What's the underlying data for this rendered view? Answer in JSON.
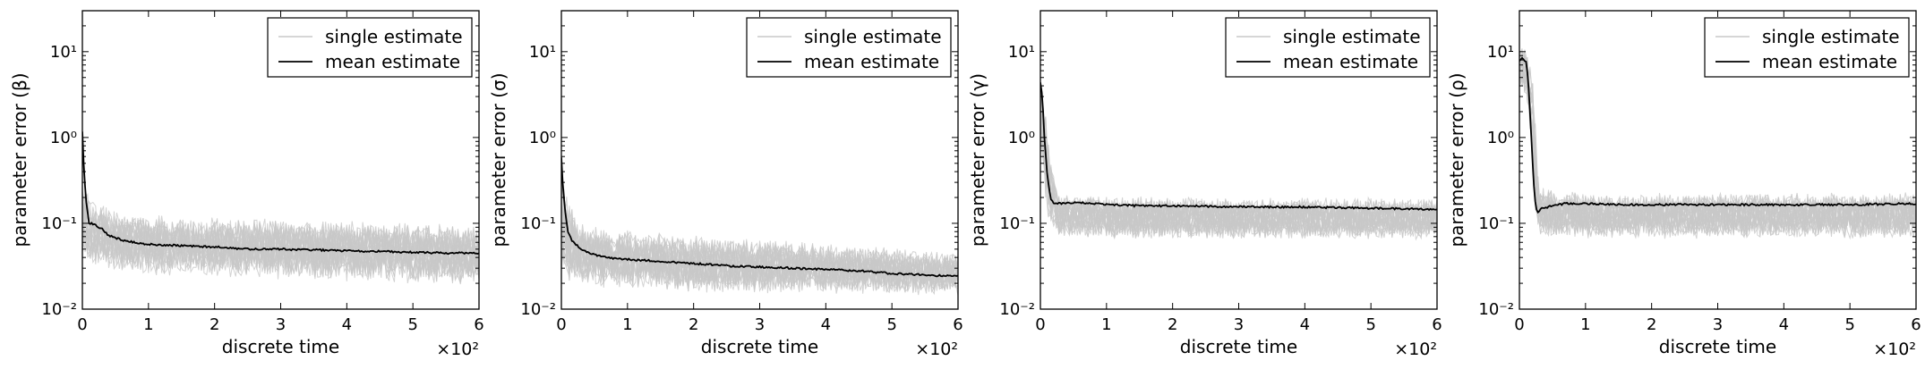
{
  "chart_data": [
    {
      "type": "line",
      "xlabel": "discrete time",
      "ylabel": "parameter error (β)",
      "x_multiplier": "×10²",
      "xlim": [
        0,
        6
      ],
      "ylim": [
        0.01,
        30
      ],
      "yscale": "log",
      "xticks": [
        "0",
        "1",
        "2",
        "3",
        "4",
        "5",
        "6"
      ],
      "yticks": [
        "10⁻²",
        "10⁻¹",
        "10⁰",
        "10¹"
      ],
      "legend": {
        "position": "top-right",
        "entries": [
          "single estimate",
          "mean estimate"
        ]
      },
      "band": {
        "name": "single estimate",
        "color": "#c8c8c8",
        "x": [
          0,
          0.1,
          0.3,
          0.6,
          1,
          2,
          3,
          4,
          5,
          6
        ],
        "lower": [
          0.02,
          0.02,
          0.02,
          0.018,
          0.017,
          0.016,
          0.015,
          0.014,
          0.013,
          0.013
        ],
        "upper": [
          0.6,
          0.4,
          0.25,
          0.2,
          0.19,
          0.17,
          0.17,
          0.16,
          0.15,
          0.14
        ]
      },
      "series": [
        {
          "name": "mean estimate",
          "color": "#000000",
          "x": [
            0,
            0.02,
            0.05,
            0.1,
            0.15,
            0.2,
            0.3,
            0.4,
            0.5,
            0.6,
            0.8,
            1,
            1.5,
            2,
            2.5,
            3,
            3.5,
            4,
            4.5,
            5,
            5.5,
            6
          ],
          "values": [
            1.2,
            0.5,
            0.2,
            0.1,
            0.1,
            0.095,
            0.085,
            0.072,
            0.068,
            0.064,
            0.06,
            0.057,
            0.055,
            0.053,
            0.05,
            0.05,
            0.049,
            0.048,
            0.047,
            0.046,
            0.045,
            0.045
          ]
        }
      ]
    },
    {
      "type": "line",
      "xlabel": "discrete time",
      "ylabel": "parameter error (σ)",
      "x_multiplier": "×10²",
      "xlim": [
        0,
        6
      ],
      "ylim": [
        0.01,
        30
      ],
      "yscale": "log",
      "xticks": [
        "0",
        "1",
        "2",
        "3",
        "4",
        "5",
        "6"
      ],
      "yticks": [
        "10⁻²",
        "10⁻¹",
        "10⁰",
        "10¹"
      ],
      "legend": {
        "position": "top-right",
        "entries": [
          "single estimate",
          "mean estimate"
        ]
      },
      "band": {
        "name": "single estimate",
        "color": "#c8c8c8",
        "x": [
          0,
          0.1,
          0.3,
          0.6,
          1,
          2,
          3,
          4,
          5,
          6
        ],
        "lower": [
          0.014,
          0.013,
          0.013,
          0.012,
          0.012,
          0.011,
          0.011,
          0.011,
          0.011,
          0.011
        ],
        "upper": [
          0.7,
          0.3,
          0.15,
          0.13,
          0.12,
          0.1,
          0.09,
          0.08,
          0.07,
          0.06
        ]
      },
      "series": [
        {
          "name": "mean estimate",
          "color": "#000000",
          "x": [
            0,
            0.02,
            0.05,
            0.1,
            0.15,
            0.2,
            0.3,
            0.4,
            0.5,
            0.6,
            0.8,
            1,
            1.5,
            2,
            2.5,
            3,
            3.5,
            4,
            4.5,
            5,
            5.5,
            6
          ],
          "values": [
            0.6,
            0.3,
            0.15,
            0.08,
            0.065,
            0.058,
            0.05,
            0.046,
            0.043,
            0.041,
            0.039,
            0.038,
            0.036,
            0.034,
            0.032,
            0.031,
            0.03,
            0.029,
            0.028,
            0.026,
            0.025,
            0.024
          ]
        }
      ]
    },
    {
      "type": "line",
      "xlabel": "discrete time",
      "ylabel": "parameter error (γ)",
      "x_multiplier": "×10²",
      "xlim": [
        0,
        6
      ],
      "ylim": [
        0.01,
        30
      ],
      "yscale": "log",
      "xticks": [
        "0",
        "1",
        "2",
        "3",
        "4",
        "5",
        "6"
      ],
      "yticks": [
        "10⁻²",
        "10⁻¹",
        "10⁰",
        "10¹"
      ],
      "legend": {
        "position": "top-right",
        "entries": [
          "single estimate",
          "mean estimate"
        ]
      },
      "band": {
        "name": "single estimate",
        "color": "#c8c8c8",
        "x": [
          0,
          0.05,
          0.1,
          0.15,
          0.2,
          0.3,
          0.5,
          1,
          2,
          3,
          4,
          5,
          6
        ],
        "lower": [
          0.5,
          0.2,
          0.06,
          0.05,
          0.05,
          0.05,
          0.05,
          0.05,
          0.05,
          0.05,
          0.05,
          0.05,
          0.05
        ],
        "upper": [
          8,
          6,
          3,
          1.2,
          0.5,
          0.3,
          0.28,
          0.27,
          0.27,
          0.26,
          0.26,
          0.26,
          0.26
        ]
      },
      "series": [
        {
          "name": "mean estimate",
          "color": "#000000",
          "x": [
            0,
            0.03,
            0.06,
            0.1,
            0.15,
            0.2,
            0.3,
            0.5,
            0.7,
            1,
            1.5,
            2,
            2.5,
            3,
            3.5,
            4,
            4.5,
            5,
            5.5,
            6
          ],
          "values": [
            4.5,
            3,
            1,
            0.4,
            0.2,
            0.17,
            0.17,
            0.175,
            0.172,
            0.165,
            0.16,
            0.16,
            0.158,
            0.156,
            0.155,
            0.155,
            0.152,
            0.15,
            0.148,
            0.145
          ]
        }
      ]
    },
    {
      "type": "line",
      "xlabel": "discrete time",
      "ylabel": "parameter error (ρ)",
      "x_multiplier": "×10²",
      "xlim": [
        0,
        6
      ],
      "ylim": [
        0.01,
        30
      ],
      "yscale": "log",
      "xticks": [
        "0",
        "1",
        "2",
        "3",
        "4",
        "5",
        "6"
      ],
      "yticks": [
        "10⁻²",
        "10⁻¹",
        "10⁰",
        "10¹"
      ],
      "legend": {
        "position": "top-right",
        "entries": [
          "single estimate",
          "mean estimate"
        ]
      },
      "band": {
        "name": "single estimate",
        "color": "#c8c8c8",
        "x": [
          0,
          0.05,
          0.1,
          0.15,
          0.2,
          0.25,
          0.3,
          0.4,
          0.6,
          1,
          2,
          3,
          4,
          5,
          6
        ],
        "lower": [
          3,
          3,
          2,
          1,
          0.3,
          0.06,
          0.05,
          0.05,
          0.05,
          0.05,
          0.05,
          0.05,
          0.05,
          0.05,
          0.05
        ],
        "upper": [
          15,
          15,
          14,
          12,
          8,
          2,
          0.4,
          0.35,
          0.32,
          0.3,
          0.3,
          0.3,
          0.3,
          0.3,
          0.3
        ]
      },
      "series": [
        {
          "name": "mean estimate",
          "color": "#000000",
          "x": [
            0,
            0.05,
            0.1,
            0.13,
            0.16,
            0.2,
            0.23,
            0.27,
            0.3,
            0.35,
            0.5,
            0.7,
            1,
            1.5,
            2,
            3,
            4,
            5,
            6
          ],
          "values": [
            8,
            8.5,
            7.5,
            5,
            2,
            0.5,
            0.2,
            0.13,
            0.14,
            0.15,
            0.16,
            0.17,
            0.17,
            0.165,
            0.165,
            0.165,
            0.165,
            0.165,
            0.17
          ]
        }
      ]
    }
  ]
}
